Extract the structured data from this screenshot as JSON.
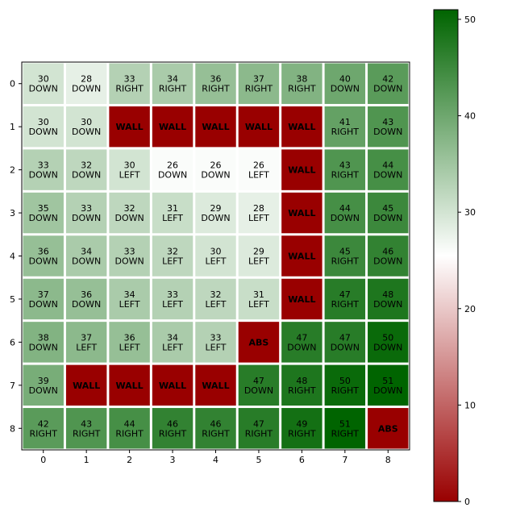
{
  "chart_data": {
    "type": "heatmap",
    "title": "",
    "xlabel": "",
    "ylabel": "",
    "x_ticks": [
      0,
      1,
      2,
      3,
      4,
      5,
      6,
      7,
      8
    ],
    "y_ticks": [
      0,
      1,
      2,
      3,
      4,
      5,
      6,
      7,
      8
    ],
    "colorbar": {
      "min": 0,
      "max": 51,
      "ticks": [
        0,
        10,
        20,
        30,
        40,
        50
      ],
      "colors": {
        "low": "#990000",
        "mid": "#ffffff",
        "high": "#006400"
      }
    },
    "grid": [
      [
        {
          "v": 30,
          "a": "DOWN"
        },
        {
          "v": 28,
          "a": "DOWN"
        },
        {
          "v": 33,
          "a": "RIGHT"
        },
        {
          "v": 34,
          "a": "RIGHT"
        },
        {
          "v": 36,
          "a": "RIGHT"
        },
        {
          "v": 37,
          "a": "RIGHT"
        },
        {
          "v": 38,
          "a": "RIGHT"
        },
        {
          "v": 40,
          "a": "DOWN"
        },
        {
          "v": 42,
          "a": "DOWN"
        }
      ],
      [
        {
          "v": 30,
          "a": "DOWN"
        },
        {
          "v": 30,
          "a": "DOWN"
        },
        {
          "v": 0,
          "a": "WALL"
        },
        {
          "v": 0,
          "a": "WALL"
        },
        {
          "v": 0,
          "a": "WALL"
        },
        {
          "v": 0,
          "a": "WALL"
        },
        {
          "v": 0,
          "a": "WALL"
        },
        {
          "v": 41,
          "a": "RIGHT"
        },
        {
          "v": 43,
          "a": "DOWN"
        }
      ],
      [
        {
          "v": 33,
          "a": "DOWN"
        },
        {
          "v": 32,
          "a": "DOWN"
        },
        {
          "v": 30,
          "a": "LEFT"
        },
        {
          "v": 26,
          "a": "DOWN"
        },
        {
          "v": 26,
          "a": "DOWN"
        },
        {
          "v": 26,
          "a": "LEFT"
        },
        {
          "v": 0,
          "a": "WALL"
        },
        {
          "v": 43,
          "a": "RIGHT"
        },
        {
          "v": 44,
          "a": "DOWN"
        }
      ],
      [
        {
          "v": 35,
          "a": "DOWN"
        },
        {
          "v": 33,
          "a": "DOWN"
        },
        {
          "v": 32,
          "a": "DOWN"
        },
        {
          "v": 31,
          "a": "LEFT"
        },
        {
          "v": 29,
          "a": "DOWN"
        },
        {
          "v": 28,
          "a": "LEFT"
        },
        {
          "v": 0,
          "a": "WALL"
        },
        {
          "v": 44,
          "a": "DOWN"
        },
        {
          "v": 45,
          "a": "DOWN"
        }
      ],
      [
        {
          "v": 36,
          "a": "DOWN"
        },
        {
          "v": 34,
          "a": "DOWN"
        },
        {
          "v": 33,
          "a": "DOWN"
        },
        {
          "v": 32,
          "a": "LEFT"
        },
        {
          "v": 30,
          "a": "LEFT"
        },
        {
          "v": 29,
          "a": "LEFT"
        },
        {
          "v": 0,
          "a": "WALL"
        },
        {
          "v": 45,
          "a": "RIGHT"
        },
        {
          "v": 46,
          "a": "DOWN"
        }
      ],
      [
        {
          "v": 37,
          "a": "DOWN"
        },
        {
          "v": 36,
          "a": "DOWN"
        },
        {
          "v": 34,
          "a": "LEFT"
        },
        {
          "v": 33,
          "a": "LEFT"
        },
        {
          "v": 32,
          "a": "LEFT"
        },
        {
          "v": 31,
          "a": "LEFT"
        },
        {
          "v": 0,
          "a": "WALL"
        },
        {
          "v": 47,
          "a": "RIGHT"
        },
        {
          "v": 48,
          "a": "DOWN"
        }
      ],
      [
        {
          "v": 38,
          "a": "DOWN"
        },
        {
          "v": 37,
          "a": "LEFT"
        },
        {
          "v": 36,
          "a": "LEFT"
        },
        {
          "v": 34,
          "a": "LEFT"
        },
        {
          "v": 33,
          "a": "LEFT"
        },
        {
          "v": 0,
          "a": "ABS"
        },
        {
          "v": 47,
          "a": "DOWN"
        },
        {
          "v": 47,
          "a": "DOWN"
        },
        {
          "v": 50,
          "a": "DOWN"
        }
      ],
      [
        {
          "v": 39,
          "a": "DOWN"
        },
        {
          "v": 0,
          "a": "WALL"
        },
        {
          "v": 0,
          "a": "WALL"
        },
        {
          "v": 0,
          "a": "WALL"
        },
        {
          "v": 0,
          "a": "WALL"
        },
        {
          "v": 47,
          "a": "DOWN"
        },
        {
          "v": 48,
          "a": "RIGHT"
        },
        {
          "v": 50,
          "a": "RIGHT"
        },
        {
          "v": 51,
          "a": "DOWN"
        }
      ],
      [
        {
          "v": 42,
          "a": "RIGHT"
        },
        {
          "v": 43,
          "a": "RIGHT"
        },
        {
          "v": 44,
          "a": "RIGHT"
        },
        {
          "v": 46,
          "a": "RIGHT"
        },
        {
          "v": 46,
          "a": "RIGHT"
        },
        {
          "v": 47,
          "a": "RIGHT"
        },
        {
          "v": 49,
          "a": "RIGHT"
        },
        {
          "v": 51,
          "a": "RIGHT"
        },
        {
          "v": 0,
          "a": "ABS"
        }
      ]
    ]
  }
}
